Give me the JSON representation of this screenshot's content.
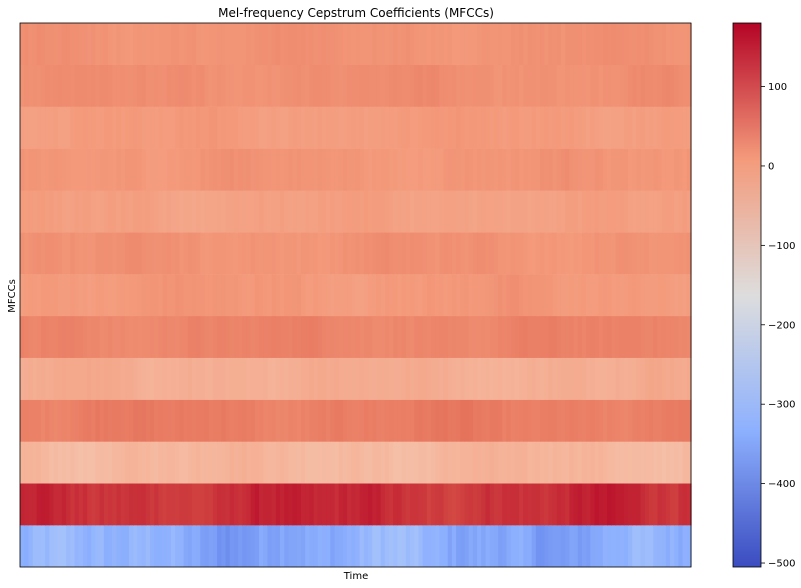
{
  "chart_data": {
    "type": "heatmap",
    "title": "Mel-frequency Cepstrum Coefficients (MFCCs)",
    "xlabel": "Time",
    "ylabel": "MFCCs",
    "colormap": "coolwarm",
    "grid": false,
    "n_coefficients": 13,
    "n_frames": 160,
    "row_order": "coefficient index 0 drawn at bottom",
    "coefficient_mean_values": [
      -340,
      140,
      -50,
      50,
      -30,
      40,
      10,
      20,
      -5,
      15,
      5,
      25,
      20
    ],
    "coefficient_variation": [
      55,
      22,
      18,
      15,
      14,
      12,
      13,
      12,
      12,
      12,
      11,
      11,
      10
    ],
    "value_range": [
      -505,
      180
    ],
    "colorbar": {
      "ticks": [
        100,
        0,
        -100,
        -200,
        -300,
        -400,
        -500
      ],
      "tick_labels": [
        "100",
        "0",
        "−100",
        "−200",
        "−300",
        "−400",
        "−500"
      ],
      "range": [
        -505,
        180
      ]
    }
  }
}
